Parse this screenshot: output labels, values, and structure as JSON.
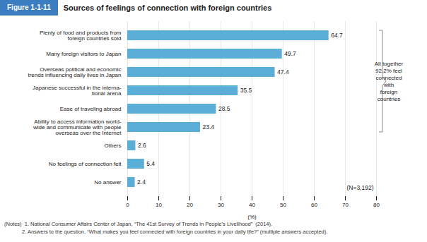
{
  "chart_data": {
    "type": "bar",
    "orientation": "horizontal",
    "title": "Sources of feelings of connection with foreign countries",
    "annotations": [
      "Figure 1-1-11",
      "All together\n92.2% feel\nconnected\nwith\nforeign\ncountries",
      "(N=3,192)",
      "(Notes)  1. National Consumer Affairs Center of Japan, “The 41st Survey of Trends in People’s Livelihood”  (2014).",
      "            2. Answers to the question, “What makes you feel connected with foreign countries in your daily life?” (multiple answers accepted)."
    ],
    "categories": [
      "Plenty of food and products from\nforeign countries sold",
      "Many foreign visitors to Japan",
      "Overseas political and economic\ntrends influencing daily lives in Japan",
      "Japanese successful in the interna-\ntional arena",
      "Ease of traveling abroad",
      "Ability to access information world-\nwide and communicate with people\noverseas over the Internet",
      "Others",
      "No feelings of connection felt",
      "No answer"
    ],
    "values": [
      64.7,
      49.7,
      47.4,
      35.5,
      28.5,
      23.4,
      2.6,
      5.4,
      2.4
    ],
    "color": "#5bafd6",
    "xlabel": "(%)",
    "xlim": [
      0,
      80
    ],
    "xticks": [
      0,
      10,
      20,
      30,
      40,
      50,
      60,
      70,
      80
    ],
    "grid": true,
    "data_labels": true
  }
}
